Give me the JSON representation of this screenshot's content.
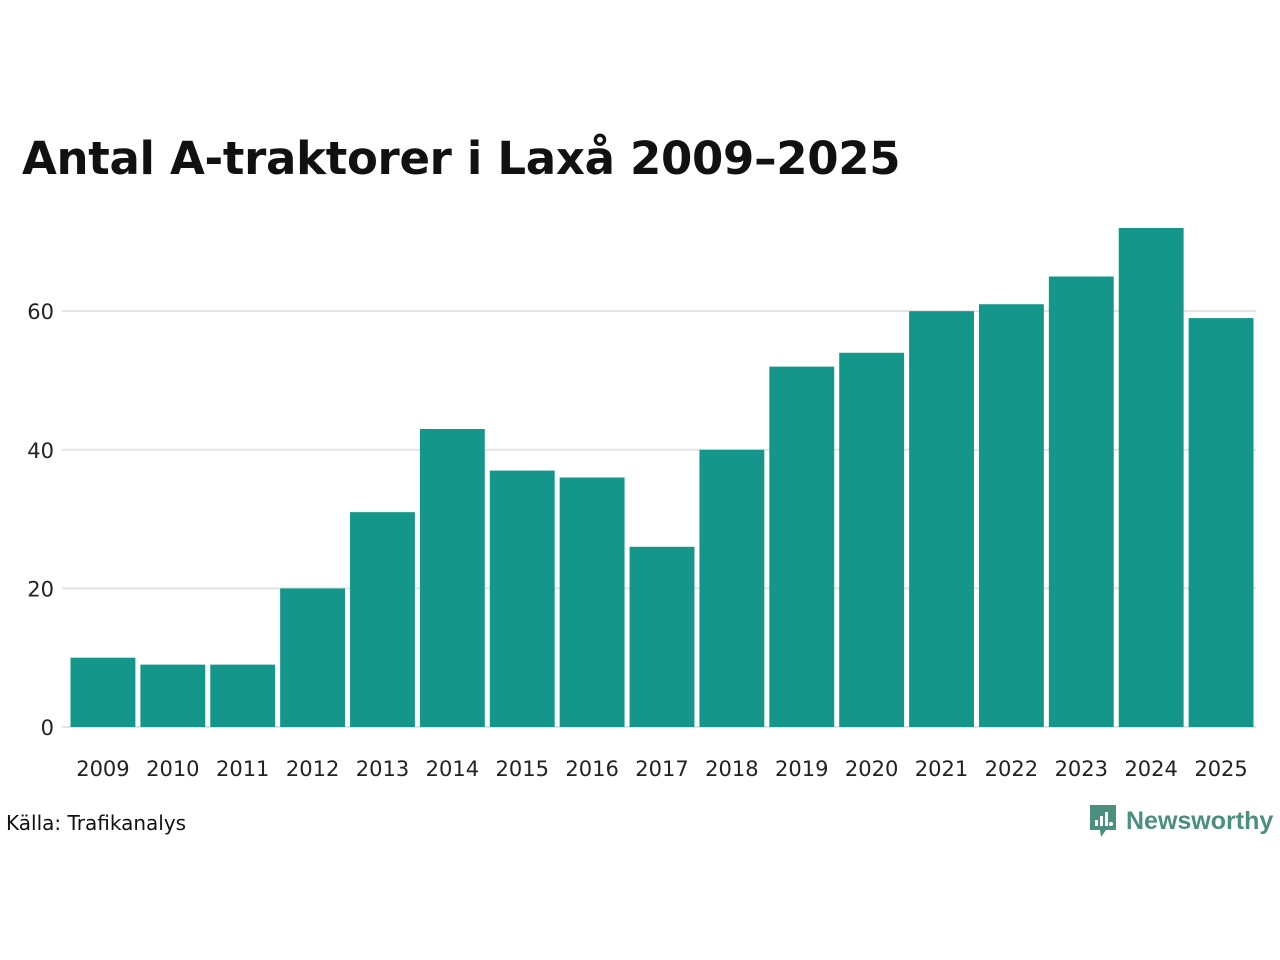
{
  "chart_data": {
    "type": "bar",
    "title": "Antal A-traktorer i Laxå 2009–2025",
    "xlabel": "",
    "ylabel": "",
    "categories": [
      "2009",
      "2010",
      "2011",
      "2012",
      "2013",
      "2014",
      "2015",
      "2016",
      "2017",
      "2018",
      "2019",
      "2020",
      "2021",
      "2022",
      "2023",
      "2024",
      "2025"
    ],
    "values": [
      10,
      9,
      9,
      20,
      31,
      43,
      37,
      36,
      26,
      40,
      52,
      54,
      60,
      61,
      65,
      72,
      59
    ],
    "ylim": [
      0,
      72
    ],
    "yticks": [
      0,
      20,
      40,
      60
    ],
    "grid": true,
    "bar_color": "#15968a",
    "grid_color": "#e3e3e3"
  },
  "source_text": "Källa: Trafikanalys",
  "logo": {
    "text": "Newsworthy",
    "icon": "newsworthy-logo-icon",
    "color": "#4a8f7f"
  }
}
